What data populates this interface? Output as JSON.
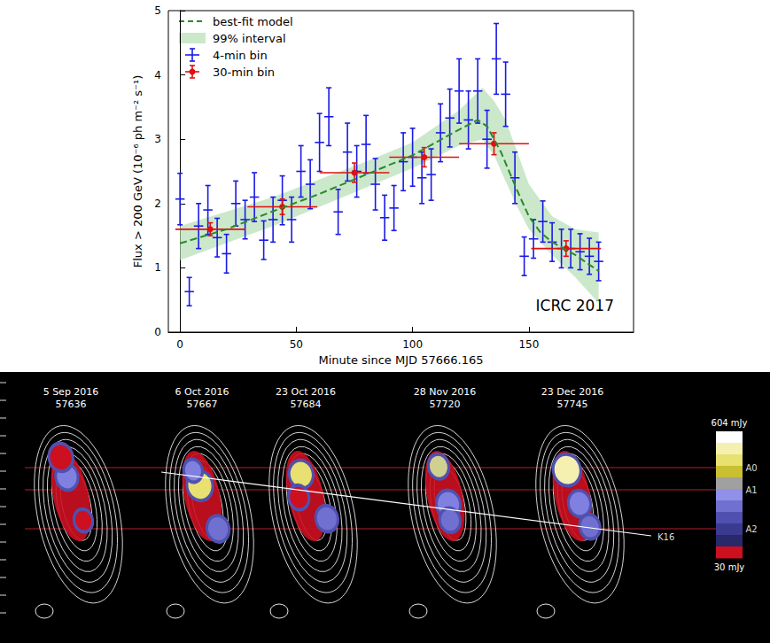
{
  "chart_data": {
    "type": "scatter",
    "x_label": "Minute since MJD 57666.165",
    "y_label": "Flux > 200 GeV (10⁻⁶ ph m⁻² s⁻¹)",
    "annotation": "ICRC 2017",
    "xlim": [
      -5,
      195
    ],
    "xticks": [
      0,
      50,
      100,
      150
    ],
    "ylim": [
      0,
      5
    ],
    "yticks": [
      0,
      1,
      2,
      3,
      4,
      5
    ],
    "grid": false,
    "legend": "upper left",
    "series": [
      {
        "name": "best-fit model",
        "type": "line",
        "line_style": "dashed",
        "color": "#2a8a2a",
        "x": [
          0,
          20,
          40,
          60,
          80,
          100,
          110,
          120,
          128,
          132,
          138,
          145,
          150,
          155,
          160,
          170,
          180
        ],
        "values": [
          1.38,
          1.6,
          1.88,
          2.15,
          2.45,
          2.75,
          2.95,
          3.15,
          3.3,
          3.2,
          2.8,
          2.2,
          1.8,
          1.55,
          1.4,
          1.2,
          0.95
        ]
      },
      {
        "name": "99% interval",
        "type": "band",
        "color": "#b9e0b9",
        "x": [
          0,
          40,
          80,
          100,
          120,
          130,
          135,
          140,
          145,
          150,
          160,
          170,
          180
        ],
        "lower": [
          1.12,
          1.65,
          2.25,
          2.55,
          2.9,
          3.0,
          2.75,
          2.35,
          1.95,
          1.6,
          1.2,
          0.85,
          0.45
        ],
        "upper": [
          1.65,
          2.1,
          2.65,
          2.95,
          3.45,
          3.8,
          3.6,
          3.3,
          2.8,
          2.3,
          1.8,
          1.6,
          1.55
        ]
      },
      {
        "name": "4-min bin",
        "type": "errorbar",
        "marker": "none",
        "color": "#1a1ae6",
        "x": [
          0,
          4,
          8,
          12,
          16,
          20,
          24,
          28,
          32,
          36,
          40,
          44,
          48,
          52,
          56,
          60,
          64,
          68,
          72,
          76,
          80,
          84,
          88,
          92,
          96,
          100,
          104,
          108,
          112,
          116,
          120,
          124,
          128,
          132,
          136,
          140,
          144,
          148,
          152,
          156,
          160,
          164,
          168,
          172,
          176,
          180
        ],
        "values": [
          2.07,
          0.63,
          1.65,
          1.9,
          1.47,
          1.22,
          2.0,
          1.75,
          2.1,
          1.43,
          1.75,
          2.05,
          1.75,
          2.5,
          2.3,
          2.95,
          3.35,
          1.87,
          2.8,
          2.5,
          2.92,
          2.3,
          1.78,
          1.93,
          2.65,
          2.72,
          2.4,
          2.45,
          3.1,
          3.33,
          3.75,
          3.3,
          3.75,
          3.0,
          4.25,
          3.7,
          2.4,
          1.18,
          1.45,
          1.72,
          1.4,
          1.3,
          1.3,
          1.25,
          1.18,
          1.1
        ],
        "x_err": [
          2,
          2,
          2,
          2,
          2,
          2,
          2,
          2,
          2,
          2,
          2,
          2,
          2,
          2,
          2,
          2,
          2,
          2,
          2,
          2,
          2,
          2,
          2,
          2,
          2,
          2,
          2,
          2,
          2,
          2,
          2,
          2,
          2,
          2,
          2,
          2,
          2,
          2,
          2,
          2,
          2,
          2,
          2,
          2,
          2,
          2
        ],
        "y_err": [
          0.4,
          0.22,
          0.35,
          0.38,
          0.3,
          0.3,
          0.35,
          0.3,
          0.38,
          0.3,
          0.35,
          0.38,
          0.35,
          0.4,
          0.38,
          0.45,
          0.45,
          0.35,
          0.45,
          0.4,
          0.45,
          0.4,
          0.35,
          0.35,
          0.45,
          0.45,
          0.4,
          0.4,
          0.45,
          0.45,
          0.5,
          0.45,
          0.5,
          0.45,
          0.55,
          0.5,
          0.4,
          0.3,
          0.3,
          0.32,
          0.3,
          0.3,
          0.3,
          0.28,
          0.28,
          0.3
        ]
      },
      {
        "name": "30-min bin",
        "type": "errorbar",
        "marker": "circle",
        "color": "#e01010",
        "x": [
          13,
          44,
          75,
          105,
          135,
          166
        ],
        "values": [
          1.6,
          1.95,
          2.48,
          2.72,
          2.93,
          1.3
        ],
        "x_err": [
          15,
          15,
          15,
          15,
          15,
          15
        ],
        "y_err": [
          0.1,
          0.12,
          0.15,
          0.15,
          0.17,
          0.12
        ]
      }
    ]
  },
  "radio_maps": {
    "epochs": [
      {
        "date": "5 Sep 2016",
        "mjd": 57636
      },
      {
        "date": "6 Oct 2016",
        "mjd": 57667
      },
      {
        "date": "23 Oct 2016",
        "mjd": 57684
      },
      {
        "date": "28 Nov 2016",
        "mjd": 57720
      },
      {
        "date": "23 Dec 2016",
        "mjd": 57745
      }
    ],
    "lines": [
      "A0",
      "A1",
      "A2"
    ],
    "trajectory": "K16",
    "colorbar_ticks": [
      {
        "value": 604,
        "label": "604 mJy"
      },
      {
        "value": 30,
        "label": "30 mJy"
      }
    ]
  }
}
